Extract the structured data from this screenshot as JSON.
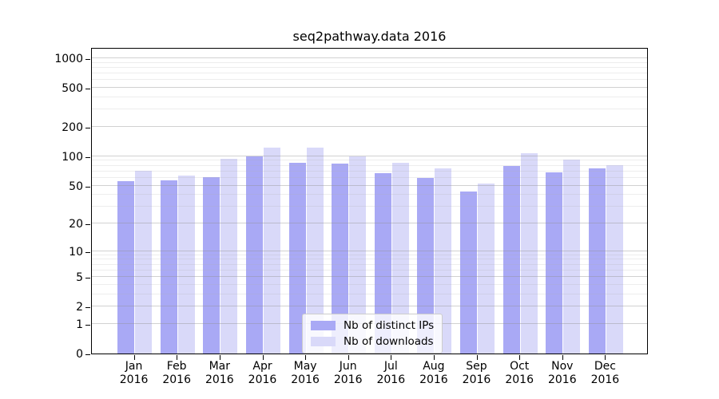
{
  "chart_data": {
    "type": "bar",
    "title": "seq2pathway.data 2016",
    "xlabel": "",
    "ylabel": "",
    "months": [
      "Jan",
      "Feb",
      "Mar",
      "Apr",
      "May",
      "Jun",
      "Jul",
      "Aug",
      "Sep",
      "Oct",
      "Nov",
      "Dec"
    ],
    "year": "2016",
    "series": [
      {
        "name": "Nb of distinct IPs",
        "color": "#a9a9f5",
        "values": [
          55,
          57,
          61,
          100,
          86,
          84,
          67,
          60,
          43,
          80,
          69,
          75
        ]
      },
      {
        "name": "Nb of downloads",
        "color": "#d9d9f9",
        "values": [
          71,
          64,
          95,
          122,
          122,
          100,
          86,
          75,
          52,
          108,
          92,
          81
        ]
      }
    ],
    "y_axis": {
      "scale": "log10(1+v)",
      "ticks": [
        0,
        1,
        2,
        5,
        10,
        20,
        50,
        100,
        200,
        500,
        1000
      ],
      "minor_ticks": [
        3,
        4,
        6,
        7,
        8,
        9,
        30,
        40,
        60,
        70,
        80,
        90,
        300,
        400,
        600,
        700,
        800,
        900
      ],
      "ylim": [
        0,
        1300
      ]
    },
    "grid": true,
    "legend_position": "bottom-center"
  },
  "colors": {
    "spine": "#000000",
    "grid_major": "#cfcfcf",
    "grid_minor": "#ebebeb",
    "legend_border": "#cccccc",
    "background": "#ffffff"
  }
}
